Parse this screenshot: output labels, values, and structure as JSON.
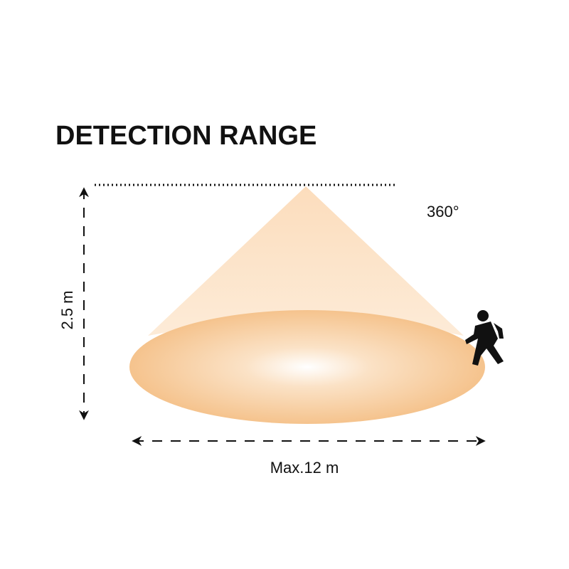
{
  "title": "DETECTION RANGE",
  "angle_label": "360°",
  "height_label": "2.5 m",
  "range_label": "Max.12 m"
}
